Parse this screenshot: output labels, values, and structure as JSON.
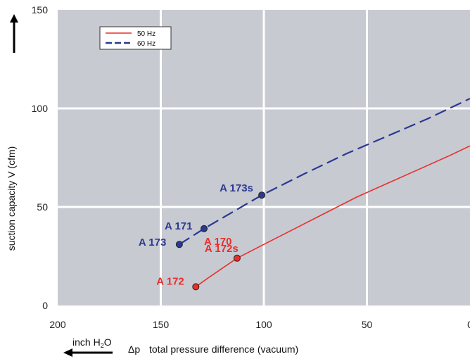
{
  "chart_data": {
    "type": "line",
    "xlabel": "total pressure difference (vacuum)",
    "xlabel_symbol": "Δp",
    "x_unit": "inch H2O",
    "ylabel": "suction capacity V (cfm)",
    "xlim": [
      200,
      0
    ],
    "ylim": [
      0,
      150
    ],
    "x_reversed": true,
    "grid": true,
    "x_ticks": [
      "200",
      "150",
      "100",
      "50",
      "0"
    ],
    "y_ticks": [
      "0",
      "50",
      "100",
      "150"
    ],
    "legend_position": "top-left",
    "series": [
      {
        "name": "50 Hz",
        "style": "solid",
        "color": "#e8302c",
        "x": [
          133,
          127,
          113,
          100,
          85,
          70,
          55,
          40,
          25,
          10,
          0
        ],
        "y": [
          9.5,
          14,
          24,
          31,
          39,
          47,
          55,
          62,
          69,
          76,
          81
        ]
      },
      {
        "name": "60 Hz",
        "style": "dashed",
        "color": "#2b3990",
        "x": [
          141,
          129,
          101,
          80,
          60,
          40,
          20,
          0
        ],
        "y": [
          31,
          39,
          56,
          67,
          77,
          86,
          95,
          105
        ]
      }
    ],
    "point_labels": [
      {
        "text": "A 172",
        "x": 133,
        "y": 9.5,
        "color": "#e8302c",
        "marker": true
      },
      {
        "text": "A 172s",
        "x": 113,
        "y": 24,
        "color": "#e8302c",
        "marker": true
      },
      {
        "text": "A 170",
        "x": 129,
        "y": 39,
        "color": "#e8302c",
        "marker": false
      },
      {
        "text": "A 173",
        "x": 141,
        "y": 31,
        "color": "#2b3990",
        "marker": true
      },
      {
        "text": "A 171",
        "x": 129,
        "y": 39,
        "color": "#2b3990",
        "marker": true
      },
      {
        "text": "A 173s",
        "x": 101,
        "y": 56,
        "color": "#2b3990",
        "marker": true
      }
    ],
    "colors": {
      "plot_background": "#c8cad2",
      "grid": "#ffffff"
    }
  }
}
